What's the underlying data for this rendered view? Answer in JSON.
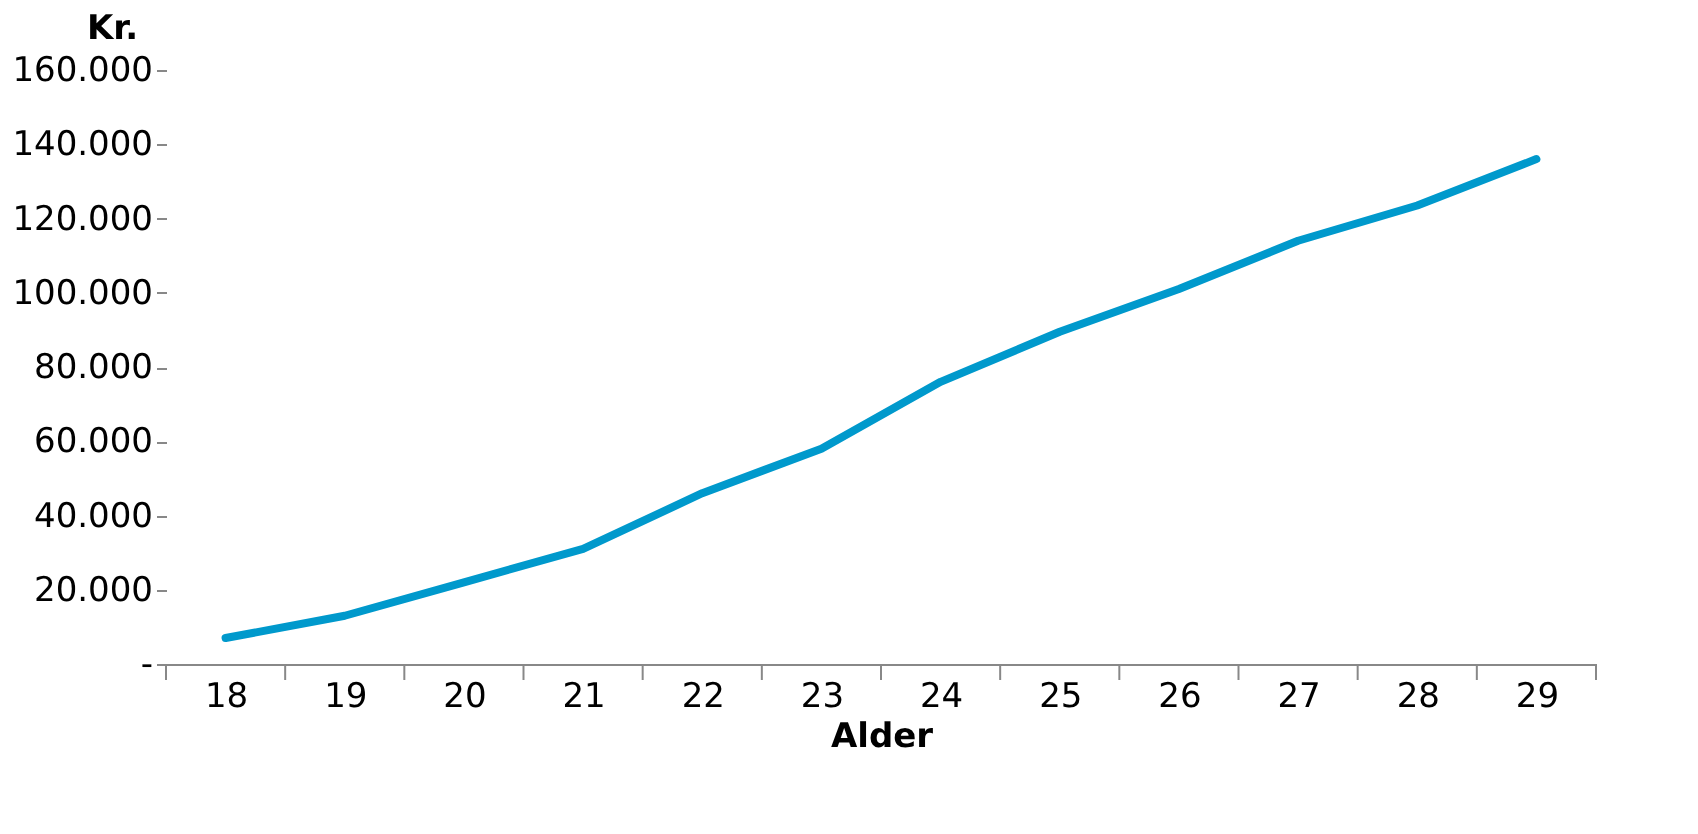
{
  "chart_data": {
    "type": "line",
    "ylabel": "Kr.",
    "xlabel": "Alder",
    "categories": [
      "18",
      "19",
      "20",
      "21",
      "22",
      "23",
      "24",
      "25",
      "26",
      "27",
      "28",
      "29"
    ],
    "series": [
      {
        "color": "#0099cc",
        "values": [
          7000,
          13000,
          22000,
          31000,
          46000,
          58000,
          76000,
          89500,
          101000,
          114000,
          123500,
          136000
        ]
      }
    ],
    "ylim": [
      0,
      160000
    ],
    "yticks": [
      {
        "value": 0,
        "label": "-"
      },
      {
        "value": 20000,
        "label": "20.000"
      },
      {
        "value": 40000,
        "label": "40.000"
      },
      {
        "value": 60000,
        "label": "60.000"
      },
      {
        "value": 80000,
        "label": "80.000"
      },
      {
        "value": 100000,
        "label": "100.000"
      },
      {
        "value": 120000,
        "label": "120.000"
      },
      {
        "value": 140000,
        "label": "140.000"
      },
      {
        "value": 160000,
        "label": "160.000"
      }
    ],
    "grid": false,
    "marker": "none",
    "line_style": "solid"
  }
}
